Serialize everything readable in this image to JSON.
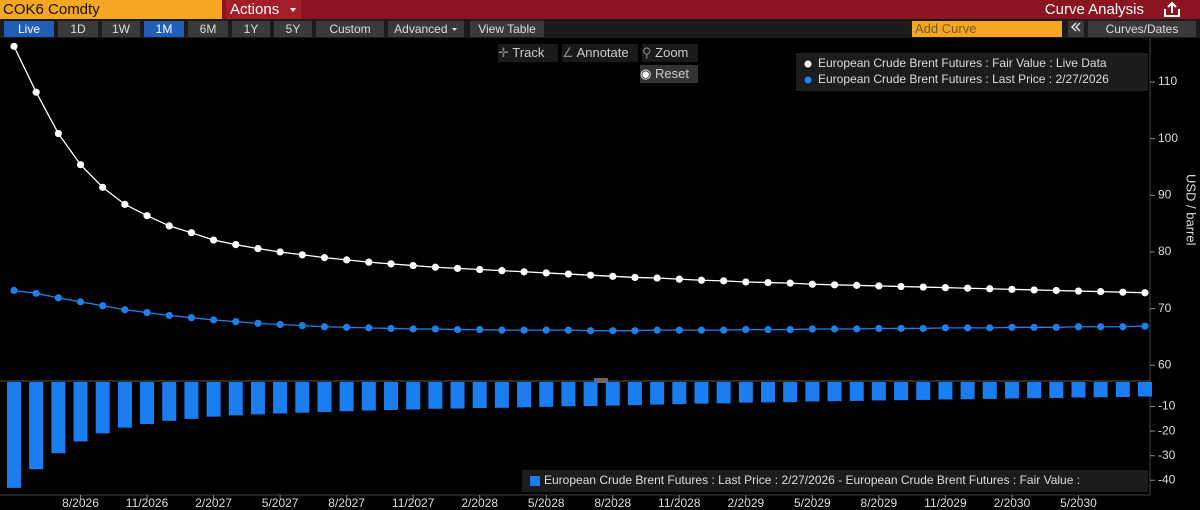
{
  "toolbar": {
    "ticker": "COK6 Comdty",
    "actions": "Actions",
    "title": "Curve Analysis",
    "buttons": [
      "Live",
      "1D",
      "1W",
      "1M",
      "6M",
      "1Y",
      "5Y",
      "Custom"
    ],
    "advanced": "Advanced",
    "view_table": "View Table",
    "add_curve": "Add Curve",
    "curves_dates": "Curves/Dates"
  },
  "chart_tools": {
    "track": "Track",
    "annotate": "Annotate",
    "zoom": "Zoom",
    "reset": "Reset"
  },
  "chart_data": [
    {
      "type": "line",
      "y_label": "USD / barrel",
      "legend": "upper right",
      "ylim": [
        57.4,
        117.5
      ],
      "yticks": [
        60,
        70,
        80,
        90,
        100,
        110
      ],
      "series": [
        {
          "name": "European Crude Brent Futures : Fair Value : Live Data",
          "color": "#ffffff",
          "values": [
            116.3,
            108.2,
            100.9,
            95.4,
            91.4,
            88.4,
            86.4,
            84.6,
            83.4,
            82.1,
            81.3,
            80.6,
            80.0,
            79.5,
            79.0,
            78.6,
            78.2,
            77.9,
            77.6,
            77.3,
            77.1,
            76.9,
            76.7,
            76.5,
            76.3,
            76.1,
            75.9,
            75.7,
            75.5,
            75.4,
            75.2,
            75.0,
            74.9,
            74.7,
            74.6,
            74.5,
            74.3,
            74.2,
            74.1,
            74.0,
            73.9,
            73.8,
            73.7,
            73.6,
            73.5,
            73.4,
            73.3,
            73.2,
            73.1,
            73.0,
            72.9,
            72.8
          ]
        },
        {
          "name": "European Crude Brent Futures : Last Price : 2/27/2026",
          "color": "#1e7fe8",
          "values": [
            73.2,
            72.7,
            71.9,
            71.2,
            70.5,
            69.8,
            69.3,
            68.8,
            68.4,
            68.0,
            67.7,
            67.4,
            67.2,
            67.0,
            66.8,
            66.7,
            66.6,
            66.5,
            66.4,
            66.4,
            66.3,
            66.3,
            66.2,
            66.2,
            66.2,
            66.2,
            66.1,
            66.1,
            66.1,
            66.2,
            66.2,
            66.2,
            66.2,
            66.3,
            66.3,
            66.3,
            66.4,
            66.4,
            66.4,
            66.5,
            66.5,
            66.5,
            66.6,
            66.6,
            66.6,
            66.7,
            66.7,
            66.7,
            66.8,
            66.8,
            66.8,
            66.9
          ]
        }
      ]
    },
    {
      "type": "bar",
      "legend": "lower right",
      "ylim": [
        -46,
        0
      ],
      "yticks": [
        -10,
        -20,
        -30,
        -40
      ],
      "categories": [
        null,
        null,
        null,
        "8/2026",
        null,
        null,
        "11/2026",
        null,
        null,
        "2/2027",
        null,
        null,
        "5/2027",
        null,
        null,
        "8/2027",
        null,
        null,
        "11/2027",
        null,
        null,
        "2/2028",
        null,
        null,
        "5/2028",
        null,
        null,
        "8/2028",
        null,
        null,
        "11/2028",
        null,
        null,
        "2/2029",
        null,
        null,
        "5/2029",
        null,
        null,
        "8/2029",
        null,
        null,
        "11/2029",
        null,
        null,
        "2/2030",
        null,
        null,
        "5/2030",
        null,
        null,
        null
      ],
      "series": [
        {
          "name": "European Crude Brent Futures : Last Price : 2/27/2026 - European Crude Brent Futures : Fair Value :",
          "color": "#1a7ef0",
          "values": [
            -43.1,
            -35.5,
            -29.0,
            -24.2,
            -20.9,
            -18.6,
            -17.1,
            -15.8,
            -15.0,
            -14.1,
            -13.6,
            -13.2,
            -12.8,
            -12.5,
            -12.2,
            -11.9,
            -11.6,
            -11.4,
            -11.2,
            -10.9,
            -10.8,
            -10.6,
            -10.5,
            -10.3,
            -10.1,
            -9.9,
            -9.8,
            -9.6,
            -9.4,
            -9.2,
            -9.0,
            -8.8,
            -8.7,
            -8.4,
            -8.3,
            -8.2,
            -7.9,
            -7.8,
            -7.7,
            -7.5,
            -7.4,
            -7.3,
            -7.1,
            -7.0,
            -6.9,
            -6.7,
            -6.6,
            -6.5,
            -6.3,
            -6.2,
            -6.1,
            -5.9
          ]
        }
      ]
    }
  ]
}
